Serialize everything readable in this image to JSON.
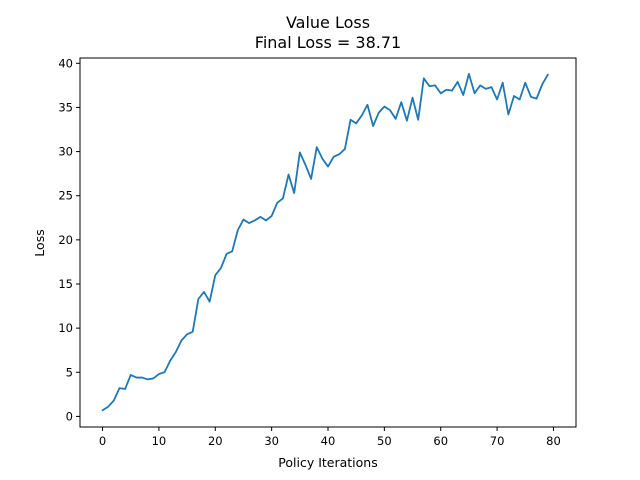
{
  "chart_data": {
    "type": "line",
    "title": "Value Loss",
    "subtitle": "Final Loss = 38.71",
    "xlabel": "Policy Iterations",
    "ylabel": "Loss",
    "xlim": [
      -4,
      84
    ],
    "ylim": [
      -1.2,
      40.6
    ],
    "xticks": [
      0,
      10,
      20,
      30,
      40,
      50,
      60,
      70,
      80
    ],
    "yticks": [
      0,
      5,
      10,
      15,
      20,
      25,
      30,
      35,
      40
    ],
    "grid": false,
    "line_color": "#1f77b4",
    "series": [
      {
        "x": [
          0,
          1,
          2,
          3,
          4,
          5,
          6,
          7,
          8,
          9,
          10,
          11,
          12,
          13,
          14,
          15,
          16,
          17,
          18,
          19,
          20,
          21,
          22,
          23,
          24,
          25,
          26,
          27,
          28,
          29,
          30,
          31,
          32,
          33,
          34,
          35,
          36,
          37,
          38,
          39,
          40,
          41,
          42,
          43,
          44,
          45,
          46,
          47,
          48,
          49,
          50,
          51,
          52,
          53,
          54,
          55,
          56,
          57,
          58,
          59,
          60,
          61,
          62,
          63,
          64,
          65,
          66,
          67,
          68,
          69,
          70,
          71,
          72,
          73,
          74,
          75,
          76,
          77,
          78,
          79
        ],
        "values": [
          0.7,
          1.1,
          1.8,
          3.2,
          3.1,
          4.7,
          4.4,
          4.4,
          4.2,
          4.3,
          4.8,
          5.0,
          6.3,
          7.3,
          8.6,
          9.3,
          9.6,
          13.3,
          14.1,
          13.0,
          16.0,
          16.8,
          18.4,
          18.7,
          21.1,
          22.3,
          21.9,
          22.2,
          22.6,
          22.2,
          22.7,
          24.2,
          24.7,
          27.4,
          25.3,
          29.9,
          28.5,
          26.9,
          30.5,
          29.2,
          28.3,
          29.4,
          29.7,
          30.3,
          33.6,
          33.2,
          34.1,
          35.3,
          32.9,
          34.4,
          35.1,
          34.7,
          33.7,
          35.6,
          33.5,
          36.1,
          33.6,
          38.3,
          37.4,
          37.5,
          36.6,
          37.0,
          36.9,
          37.9,
          36.4,
          38.8,
          36.6,
          37.5,
          37.1,
          37.3,
          35.9,
          37.8,
          34.2,
          36.3,
          35.9,
          37.8,
          36.2,
          36.0,
          37.6,
          38.71
        ]
      }
    ]
  }
}
